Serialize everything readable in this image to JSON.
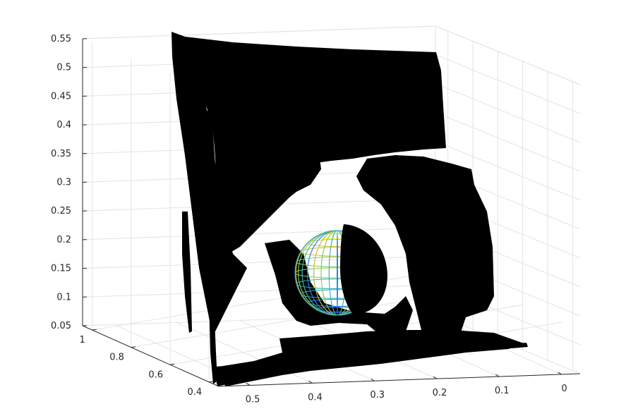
{
  "chart_data": {
    "type": "scatter",
    "title": "",
    "xlabel": "",
    "ylabel": "",
    "zlabel": "",
    "grid": true,
    "legend": "none",
    "colormap": [
      "#3d26a8",
      "#2c7ff2",
      "#20b2c3",
      "#80cb58",
      "#e2b92e",
      "#f9fb0e"
    ],
    "point_color": "#000000",
    "x_axis": {
      "ticks": [
        0.5,
        0.4,
        0.3,
        0.2,
        0.1,
        0
      ],
      "tick_labels": [
        "0.5",
        "0.4",
        "0.3",
        "0.2",
        "0.1",
        "0"
      ]
    },
    "y_axis": {
      "ticks": [
        1,
        0.8,
        0.6,
        0.4
      ],
      "tick_labels": [
        "1",
        "0.8",
        "0.6",
        "0.4"
      ]
    },
    "z_axis": {
      "ticks": [
        0.55,
        0.5,
        0.45,
        0.4,
        0.35,
        0.3,
        0.25,
        0.2,
        0.15,
        0.1,
        0.05
      ],
      "tick_labels": [
        "0.55",
        "0.5",
        "0.45",
        "0.4",
        "0.35",
        "0.3",
        "0.25",
        "0.2",
        "0.15",
        "0.1",
        "0.05"
      ]
    },
    "series": [
      {
        "type": "point-cloud"
      },
      {
        "type": "wireframe-sphere",
        "center": [
          0.34,
          0.8,
          0.17
        ],
        "radius": 0.07
      }
    ]
  }
}
